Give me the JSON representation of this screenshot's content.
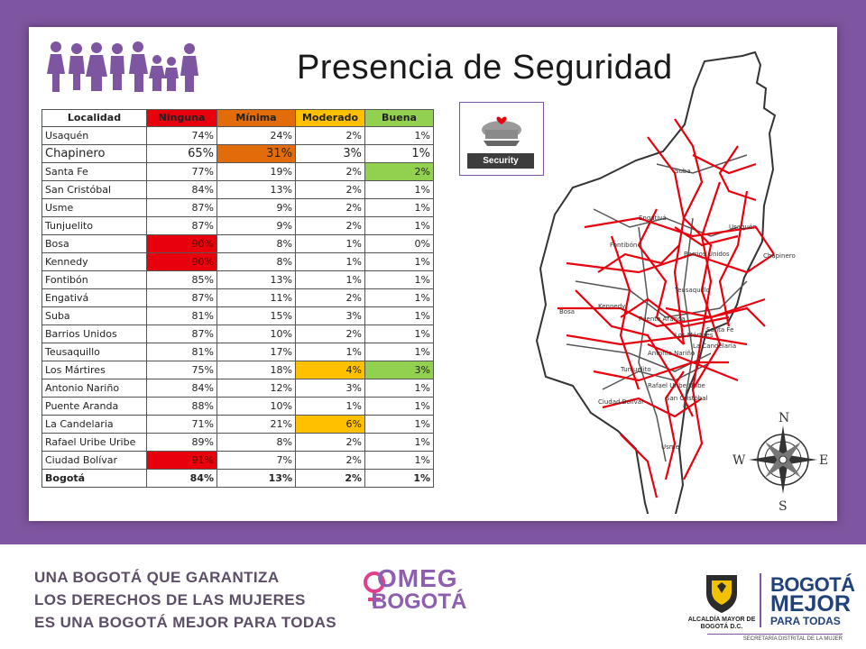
{
  "slide": {
    "title": "Presencia de Seguridad",
    "security_label": "Security"
  },
  "table": {
    "headers": [
      "Localidad",
      "Ninguna",
      "Mínima",
      "Moderado",
      "Buena"
    ],
    "header_colors": {
      "Ninguna": "#e8000d",
      "Mínima": "#e36c0a",
      "Moderado": "#ffc000",
      "Buena": "#92d050"
    },
    "rows": [
      {
        "localidad": "Usaquén",
        "ninguna": "74%",
        "minima": "24%",
        "moderado": "2%",
        "buena": "1%"
      },
      {
        "localidad": "Chapinero",
        "ninguna": "65%",
        "minima": "31%",
        "moderado": "3%",
        "buena": "1%",
        "emphasis": true,
        "hl": {
          "minima": "orange"
        }
      },
      {
        "localidad": "Santa Fe",
        "ninguna": "77%",
        "minima": "19%",
        "moderado": "2%",
        "buena": "2%",
        "hl": {
          "buena": "green"
        }
      },
      {
        "localidad": "San Cristóbal",
        "ninguna": "84%",
        "minima": "13%",
        "moderado": "2%",
        "buena": "1%"
      },
      {
        "localidad": "Usme",
        "ninguna": "87%",
        "minima": "9%",
        "moderado": "2%",
        "buena": "1%"
      },
      {
        "localidad": "Tunjuelito",
        "ninguna": "87%",
        "minima": "9%",
        "moderado": "2%",
        "buena": "1%"
      },
      {
        "localidad": "Bosa",
        "ninguna": "90%",
        "minima": "8%",
        "moderado": "1%",
        "buena": "0%",
        "hl": {
          "ninguna": "red"
        }
      },
      {
        "localidad": "Kennedy",
        "ninguna": "90%",
        "minima": "8%",
        "moderado": "1%",
        "buena": "1%",
        "hl": {
          "ninguna": "red"
        }
      },
      {
        "localidad": "Fontibón",
        "ninguna": "85%",
        "minima": "13%",
        "moderado": "1%",
        "buena": "1%"
      },
      {
        "localidad": "Engativá",
        "ninguna": "87%",
        "minima": "11%",
        "moderado": "2%",
        "buena": "1%"
      },
      {
        "localidad": "Suba",
        "ninguna": "81%",
        "minima": "15%",
        "moderado": "3%",
        "buena": "1%"
      },
      {
        "localidad": "Barrios Unidos",
        "ninguna": "87%",
        "minima": "10%",
        "moderado": "2%",
        "buena": "1%"
      },
      {
        "localidad": "Teusaquillo",
        "ninguna": "81%",
        "minima": "17%",
        "moderado": "1%",
        "buena": "1%"
      },
      {
        "localidad": "Los Mártires",
        "ninguna": "75%",
        "minima": "18%",
        "moderado": "4%",
        "buena": "3%",
        "hl": {
          "moderado": "yellow",
          "buena": "green"
        }
      },
      {
        "localidad": "Antonio Nariño",
        "ninguna": "84%",
        "minima": "12%",
        "moderado": "3%",
        "buena": "1%"
      },
      {
        "localidad": "Puente Aranda",
        "ninguna": "88%",
        "minima": "10%",
        "moderado": "1%",
        "buena": "1%"
      },
      {
        "localidad": "La Candelaria",
        "ninguna": "71%",
        "minima": "21%",
        "moderado": "6%",
        "buena": "1%",
        "hl": {
          "moderado": "yellow"
        }
      },
      {
        "localidad": "Rafael Uribe Uribe",
        "ninguna": "89%",
        "minima": "8%",
        "moderado": "2%",
        "buena": "1%",
        "tall": true
      },
      {
        "localidad": "Ciudad Bolívar",
        "ninguna": "91%",
        "minima": "7%",
        "moderado": "2%",
        "buena": "1%",
        "hl": {
          "ninguna": "red"
        }
      },
      {
        "localidad": "Bogotá",
        "ninguna": "84%",
        "minima": "13%",
        "moderado": "2%",
        "buena": "1%",
        "bold": true
      }
    ]
  },
  "map": {
    "labels": [
      "Suba",
      "Engativá",
      "Usaquén",
      "Fontibón",
      "Barrios Unidos",
      "Chapinero",
      "Teusaquillo",
      "Bosa",
      "Kennedy",
      "Puente Aranda",
      "Santa Fe",
      "Los Mártires",
      "La Candelaria",
      "Antonio Nariño",
      "Rafael Uribe Uribe",
      "Tunjuelito",
      "San Cristóbal",
      "Ciudad Bolívar",
      "Usme"
    ],
    "compass": {
      "n": "N",
      "s": "S",
      "e": "E",
      "w": "W"
    }
  },
  "footer": {
    "line1": "UNA BOGOTÁ QUE GARANTIZA",
    "line2": "LOS DERECHOS DE LAS MUJERES",
    "line3": "ES UNA BOGOTÁ MEJOR PARA TODAS",
    "omeg_line1": "OMEG",
    "omeg_line2": "BOGOTÁ",
    "alcaldia": "ALCALDÍA MAYOR DE BOGOTÁ D.C.",
    "bogota_line1": "BOGOTÁ",
    "bogota_line2": "MEJOR",
    "bogota_line3": "PARA TODAS",
    "secretaria": "SECRETARÍA DISTRITAL DE LA MUJER"
  }
}
